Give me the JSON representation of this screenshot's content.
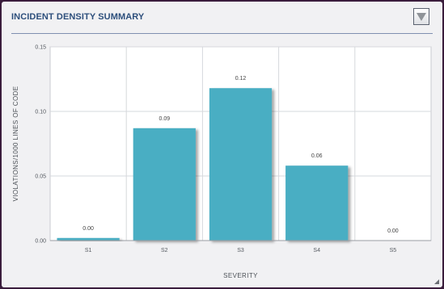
{
  "panel": {
    "title": "INCIDENT DENSITY SUMMARY",
    "menu_icon": "dropdown-triangle-icon",
    "resize_icon": "resize-grip-icon"
  },
  "chart_data": {
    "type": "bar",
    "title": "",
    "xlabel": "SEVERITY",
    "ylabel": "VIOLATIONS/1000 LINES OF CODE",
    "categories": [
      "S1",
      "S2",
      "S3",
      "S4",
      "S5"
    ],
    "values": [
      0.002,
      0.087,
      0.118,
      0.058,
      0.0
    ],
    "data_labels": [
      "0.00",
      "0.09",
      "0.12",
      "0.06",
      "0.00"
    ],
    "ylim": [
      0,
      0.15
    ],
    "yticks": [
      0.0,
      0.05,
      0.1,
      0.15
    ],
    "ytick_labels": [
      "0.00",
      "0.05",
      "0.10",
      "0.15"
    ],
    "grid": true,
    "bar_color": "#4aaec3",
    "legend": "none"
  }
}
